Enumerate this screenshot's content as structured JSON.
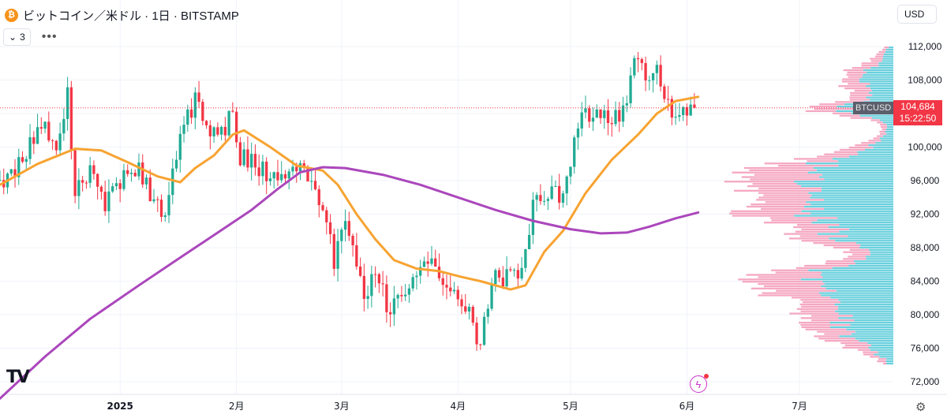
{
  "header": {
    "coin_symbol": "₿",
    "title": "ビットコイン／米ドル · 1日 · BITSTAMP"
  },
  "indicators": {
    "count_label": "3",
    "more_label": "•••"
  },
  "currency_button": "USD",
  "price_tag": {
    "symbol": "BTCUSD",
    "price": "104,684",
    "countdown": "15:22:50"
  },
  "logo_text": "TV",
  "chart_data": {
    "type": "candlestick",
    "symbol": "BTCUSD",
    "exchange": "BITSTAMP",
    "interval": "1日",
    "last_price": 104684,
    "ylim": [
      70000,
      114000
    ],
    "y_ticks": [
      "72,000",
      "76,000",
      "80,000",
      "84,000",
      "88,000",
      "92,000",
      "96,000",
      "100,000",
      "104,000",
      "108,000",
      "112,000"
    ],
    "y_tick_values": [
      72000,
      76000,
      80000,
      84000,
      88000,
      92000,
      96000,
      100000,
      104000,
      108000,
      112000
    ],
    "x_labels": [
      "2025",
      "2月",
      "3月",
      "4月",
      "5月",
      "6月",
      "7月"
    ],
    "x_label_days": [
      0,
      31,
      59,
      90,
      120,
      151,
      181
    ],
    "x_domain_days": [
      -32,
      206
    ],
    "candle_anchors": [
      [
        -32,
        96000
      ],
      [
        -28,
        97500
      ],
      [
        -24,
        100500
      ],
      [
        -20,
        102000
      ],
      [
        -17,
        98500
      ],
      [
        -14,
        106000
      ],
      [
        -12,
        95000
      ],
      [
        -8,
        97500
      ],
      [
        -4,
        93500
      ],
      [
        0,
        96000
      ],
      [
        5,
        97500
      ],
      [
        8,
        94000
      ],
      [
        12,
        92500
      ],
      [
        16,
        100500
      ],
      [
        20,
        106000
      ],
      [
        22,
        103500
      ],
      [
        25,
        102000
      ],
      [
        28,
        102500
      ],
      [
        30,
        104500
      ],
      [
        32,
        99000
      ],
      [
        35,
        98000
      ],
      [
        40,
        96500
      ],
      [
        45,
        97500
      ],
      [
        50,
        96500
      ],
      [
        55,
        91000
      ],
      [
        57,
        86000
      ],
      [
        60,
        92000
      ],
      [
        65,
        82500
      ],
      [
        68,
        85500
      ],
      [
        72,
        80000
      ],
      [
        76,
        83500
      ],
      [
        80,
        84500
      ],
      [
        83,
        86500
      ],
      [
        86,
        83500
      ],
      [
        89,
        83000
      ],
      [
        92,
        81500
      ],
      [
        96,
        76500
      ],
      [
        99,
        84000
      ],
      [
        103,
        84500
      ],
      [
        107,
        85000
      ],
      [
        110,
        93000
      ],
      [
        114,
        95000
      ],
      [
        118,
        94000
      ],
      [
        120,
        97000
      ],
      [
        122,
        103500
      ],
      [
        125,
        104000
      ],
      [
        128,
        103500
      ],
      [
        133,
        103500
      ],
      [
        136,
        108000
      ],
      [
        138,
        111000
      ],
      [
        141,
        107500
      ],
      [
        143,
        109000
      ],
      [
        145,
        106000
      ],
      [
        148,
        104000
      ],
      [
        150,
        105000
      ],
      [
        153,
        104684
      ]
    ],
    "series": [
      {
        "name": "MA",
        "color": "#f7a331",
        "points": [
          [
            -32,
            95500
          ],
          [
            -22,
            98000
          ],
          [
            -12,
            99800
          ],
          [
            -5,
            99600
          ],
          [
            2,
            98200
          ],
          [
            10,
            96500
          ],
          [
            16,
            95800
          ],
          [
            20,
            97500
          ],
          [
            25,
            99000
          ],
          [
            30,
            101500
          ],
          [
            33,
            102000
          ],
          [
            40,
            100000
          ],
          [
            47,
            97800
          ],
          [
            54,
            97200
          ],
          [
            58,
            95500
          ],
          [
            63,
            92000
          ],
          [
            68,
            89000
          ],
          [
            73,
            86500
          ],
          [
            79,
            85500
          ],
          [
            85,
            85200
          ],
          [
            91,
            84500
          ],
          [
            96,
            84000
          ],
          [
            100,
            83500
          ],
          [
            104,
            83000
          ],
          [
            108,
            83500
          ],
          [
            113,
            87500
          ],
          [
            118,
            90000
          ],
          [
            124,
            94500
          ],
          [
            131,
            98500
          ],
          [
            138,
            101500
          ],
          [
            143,
            104000
          ],
          [
            148,
            105500
          ],
          [
            154,
            106000
          ]
        ]
      },
      {
        "name": "MA",
        "color": "#ab47bc",
        "points": [
          [
            -32,
            70000
          ],
          [
            -20,
            75000
          ],
          [
            -8,
            79500
          ],
          [
            5,
            83500
          ],
          [
            15,
            86500
          ],
          [
            25,
            89500
          ],
          [
            35,
            92500
          ],
          [
            42,
            95000
          ],
          [
            48,
            97000
          ],
          [
            54,
            97600
          ],
          [
            60,
            97500
          ],
          [
            70,
            96700
          ],
          [
            80,
            95500
          ],
          [
            90,
            94000
          ],
          [
            100,
            92500
          ],
          [
            110,
            91200
          ],
          [
            120,
            90200
          ],
          [
            128,
            89700
          ],
          [
            135,
            89800
          ],
          [
            141,
            90500
          ],
          [
            148,
            91500
          ],
          [
            154,
            92200
          ]
        ]
      }
    ],
    "volume_profile_range": [
      74000,
      112000
    ],
    "volume_profile_bins": 140,
    "colors": {
      "up": "#22ab94",
      "down": "#f23645",
      "vp_up": "#6ad0dd",
      "vp_down": "#f5a8c2",
      "last_line": "#f23645"
    }
  }
}
